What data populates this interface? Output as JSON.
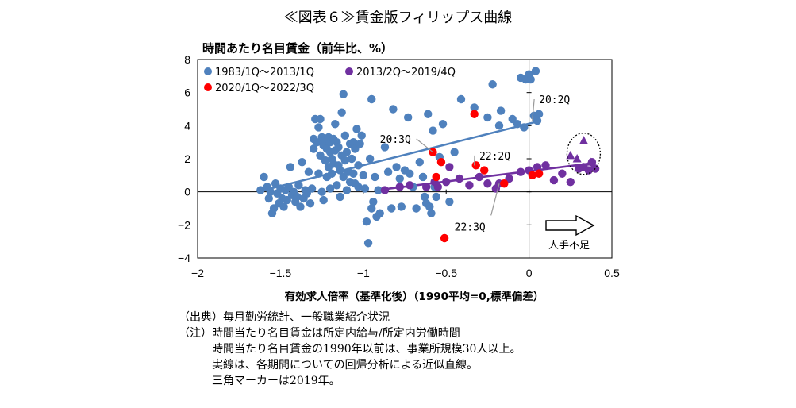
{
  "page": {
    "title": "≪図表６≫賃金版フィリップス曲線",
    "notes": [
      "（出典）毎月勤労統計、一般職業紹介状況",
      "（注）時間当たり名目賃金は所定内給与/所定内労働時間",
      "　　　時間当たり名目賃金の1990年以前は、事業所規模30人以上。",
      "　　　実線は、各期間についての回帰分析による近似直線。",
      "　　　三角マーカーは2019年。"
    ]
  },
  "chart_data": {
    "type": "scatter",
    "title": "≪図表６≫賃金版フィリップス曲線",
    "ylabel": "時間あたり名目賃金（前年比、%）",
    "xlabel": "有効求人倍率（基準化後）（1990平均=0,標準偏差）",
    "xlim": [
      -2,
      0.5
    ],
    "ylim": [
      -4,
      8
    ],
    "xticks": [
      -2,
      -1.5,
      -1,
      -0.5,
      0,
      0.5
    ],
    "xtick_labels": [
      "−2",
      "−1.5",
      "−1",
      "−0.5",
      "0",
      "0.5"
    ],
    "yticks": [
      -4,
      -2,
      0,
      2,
      4,
      6,
      8
    ],
    "ytick_labels": [
      "−4",
      "−2",
      "0",
      "2",
      "4",
      "6",
      "8"
    ],
    "grid": false,
    "legend_position": "top-left",
    "series": [
      {
        "name": "1983/1Q～2013/1Q",
        "color": "#4f81bd",
        "trend": [
          [
            -1.62,
            0.05
          ],
          [
            0.07,
            4.3
          ]
        ],
        "points": [
          [
            -1.62,
            0.1
          ],
          [
            -1.6,
            0.9
          ],
          [
            -1.58,
            0.3
          ],
          [
            -1.57,
            -0.4
          ],
          [
            -1.56,
            0.0
          ],
          [
            -1.55,
            -1.3
          ],
          [
            -1.54,
            -1.0
          ],
          [
            -1.53,
            0.5
          ],
          [
            -1.52,
            -0.1
          ],
          [
            -1.51,
            -0.7
          ],
          [
            -1.5,
            0.2
          ],
          [
            -1.49,
            -0.4
          ],
          [
            -1.48,
            -0.9
          ],
          [
            -1.47,
            0.1
          ],
          [
            -1.46,
            -0.5
          ],
          [
            -1.45,
            0.3
          ],
          [
            -1.44,
            1.5
          ],
          [
            -1.43,
            -0.2
          ],
          [
            -1.42,
            0.0
          ],
          [
            -1.41,
            -0.6
          ],
          [
            -1.4,
            -0.3
          ],
          [
            -1.39,
            0.4
          ],
          [
            -1.38,
            -0.9
          ],
          [
            -1.37,
            1.8
          ],
          [
            -1.36,
            -0.4
          ],
          [
            -1.35,
            0.1
          ],
          [
            -1.34,
            -0.1
          ],
          [
            -1.33,
            1.2
          ],
          [
            -1.32,
            -0.7
          ],
          [
            -1.31,
            0.2
          ],
          [
            -1.3,
            2.6
          ],
          [
            -1.3,
            3.2
          ],
          [
            -1.29,
            4.4
          ],
          [
            -1.28,
            3.0
          ],
          [
            -1.27,
            1.1
          ],
          [
            -1.27,
            3.9
          ],
          [
            -1.26,
            2.2
          ],
          [
            -1.26,
            4.4
          ],
          [
            -1.25,
            0.0
          ],
          [
            -1.25,
            3.3
          ],
          [
            -1.24,
            -0.5
          ],
          [
            -1.24,
            2.8
          ],
          [
            -1.23,
            1.9
          ],
          [
            -1.23,
            3.1
          ],
          [
            -1.22,
            0.9
          ],
          [
            -1.22,
            2.6
          ],
          [
            -1.21,
            3.3
          ],
          [
            -1.21,
            1.5
          ],
          [
            -1.2,
            2.4
          ],
          [
            -1.2,
            3.0
          ],
          [
            -1.2,
            0.2
          ],
          [
            -1.19,
            2.0
          ],
          [
            -1.19,
            1.1
          ],
          [
            -1.18,
            3.2
          ],
          [
            -1.18,
            1.7
          ],
          [
            -1.17,
            4.1
          ],
          [
            -1.17,
            2.5
          ],
          [
            -1.16,
            0.4
          ],
          [
            -1.16,
            3.0
          ],
          [
            -1.15,
            2.7
          ],
          [
            -1.15,
            1.6
          ],
          [
            -1.14,
            -0.3
          ],
          [
            -1.14,
            1.3
          ],
          [
            -1.13,
            4.8
          ],
          [
            -1.13,
            2.2
          ],
          [
            -1.12,
            5.9
          ],
          [
            -1.12,
            0.9
          ],
          [
            -1.11,
            1.9
          ],
          [
            -1.11,
            3.4
          ],
          [
            -1.1,
            0.1
          ],
          [
            -1.1,
            2.4
          ],
          [
            -1.09,
            1.2
          ],
          [
            -1.08,
            0.6
          ],
          [
            -1.08,
            2.9
          ],
          [
            -1.07,
            2.0
          ],
          [
            -1.06,
            1.1
          ],
          [
            -1.06,
            3.0
          ],
          [
            -1.05,
            0.5
          ],
          [
            -1.05,
            2.6
          ],
          [
            -1.04,
            3.8
          ],
          [
            -1.03,
            0.3
          ],
          [
            -1.03,
            1.6
          ],
          [
            -1.02,
            2.9
          ],
          [
            -1.01,
            3.4
          ],
          [
            -1.0,
            1.0
          ],
          [
            -0.99,
            0.2
          ],
          [
            -0.98,
            -1.8
          ],
          [
            -0.97,
            -3.1
          ],
          [
            -0.96,
            2.0
          ],
          [
            -0.95,
            -1.0
          ],
          [
            -0.95,
            5.6
          ],
          [
            -0.94,
            -0.6
          ],
          [
            -0.93,
            0.9
          ],
          [
            -0.92,
            -1.5
          ],
          [
            -0.91,
            0.1
          ],
          [
            -0.9,
            -1.3
          ],
          [
            -0.87,
            2.7
          ],
          [
            -0.85,
            1.2
          ],
          [
            -0.83,
            -1.0
          ],
          [
            -0.82,
            5.0
          ],
          [
            -0.8,
            1.5
          ],
          [
            -0.78,
            0.8
          ],
          [
            -0.77,
            -0.9
          ],
          [
            -0.75,
            1.3
          ],
          [
            -0.73,
            4.5
          ],
          [
            -0.72,
            1.1
          ],
          [
            -0.7,
            0.3
          ],
          [
            -0.68,
            -1.0
          ],
          [
            -0.66,
            1.8
          ],
          [
            -0.64,
            0.9
          ],
          [
            -0.63,
            -0.3
          ],
          [
            -0.62,
            -0.7
          ],
          [
            -0.61,
            4.7
          ],
          [
            -0.6,
            -0.9
          ],
          [
            -0.59,
            -1.3
          ],
          [
            -0.58,
            3.7
          ],
          [
            -0.57,
            0.3
          ],
          [
            -0.56,
            -0.3
          ],
          [
            -0.54,
            2.1
          ],
          [
            -0.52,
            4.1
          ],
          [
            -0.48,
            -0.6
          ],
          [
            -0.45,
            2.4
          ],
          [
            -0.41,
            5.6
          ],
          [
            -0.33,
            5.1
          ],
          [
            -0.25,
            4.5
          ],
          [
            -0.22,
            6.5
          ],
          [
            -0.18,
            4.0
          ],
          [
            -0.17,
            4.9
          ],
          [
            -0.1,
            4.4
          ],
          [
            -0.07,
            4.1
          ],
          [
            -0.05,
            6.9
          ],
          [
            -0.03,
            3.9
          ],
          [
            -0.02,
            6.8
          ],
          [
            0.0,
            7.1
          ],
          [
            0.01,
            6.8
          ],
          [
            0.03,
            4.6
          ],
          [
            0.04,
            7.3
          ],
          [
            0.05,
            4.3
          ],
          [
            0.06,
            4.7
          ]
        ]
      },
      {
        "name": "2013/2Q～2019/4Q",
        "color": "#7030a0",
        "trend": [
          [
            -0.92,
            0.1
          ],
          [
            0.4,
            1.75
          ]
        ],
        "points": [
          [
            -0.87,
            0.1
          ],
          [
            -0.78,
            0.3
          ],
          [
            -0.72,
            0.4
          ],
          [
            -0.62,
            0.3
          ],
          [
            -0.57,
            0.6
          ],
          [
            -0.55,
            0.3
          ],
          [
            -0.5,
            0.6
          ],
          [
            -0.48,
            1.5
          ],
          [
            -0.42,
            0.8
          ],
          [
            -0.36,
            0.4
          ],
          [
            -0.3,
            0.9
          ],
          [
            -0.25,
            0.5
          ],
          [
            -0.2,
            0.2
          ],
          [
            -0.18,
            0.5
          ],
          [
            -0.12,
            0.8
          ],
          [
            -0.05,
            1.2
          ],
          [
            0.0,
            1.3
          ],
          [
            0.05,
            1.5
          ],
          [
            0.1,
            1.6
          ],
          [
            0.15,
            0.7
          ],
          [
            0.2,
            1.1
          ],
          [
            0.25,
            0.6
          ],
          [
            0.3,
            1.4
          ],
          [
            0.33,
            1.5
          ],
          [
            0.36,
            1.3
          ],
          [
            0.38,
            1.8
          ],
          [
            0.4,
            1.4
          ]
        ],
        "triangles": [
          [
            0.25,
            2.2
          ],
          [
            0.29,
            2.0
          ],
          [
            0.33,
            3.1
          ],
          [
            0.37,
            1.8
          ],
          [
            0.39,
            1.6
          ]
        ]
      },
      {
        "name": "2020/1Q～2022/3Q",
        "color": "#ff0000",
        "points": [
          [
            -0.58,
            2.4
          ],
          [
            -0.56,
            0.9
          ],
          [
            -0.53,
            1.8
          ],
          [
            -0.51,
            -2.8
          ],
          [
            -0.33,
            4.7
          ],
          [
            -0.32,
            1.6
          ],
          [
            -0.27,
            1.3
          ],
          [
            -0.15,
            0.5
          ],
          [
            0.02,
            1.0
          ],
          [
            0.06,
            1.1
          ]
        ]
      }
    ],
    "annotations": [
      {
        "text": "20:2Q",
        "point": [
          0.02,
          4.3
        ],
        "label": [
          0.06,
          5.6
        ]
      },
      {
        "text": "20:3Q",
        "point": [
          -0.58,
          2.4
        ],
        "label": [
          -0.9,
          3.2
        ]
      },
      {
        "text": "22:2Q",
        "point": [
          -0.33,
          1.6
        ],
        "label": [
          -0.3,
          2.2
        ]
      },
      {
        "text": "22:3Q",
        "point": [
          -0.18,
          0.5
        ],
        "label": [
          -0.45,
          -2.1
        ]
      }
    ],
    "arrow_label": "人手不足"
  }
}
